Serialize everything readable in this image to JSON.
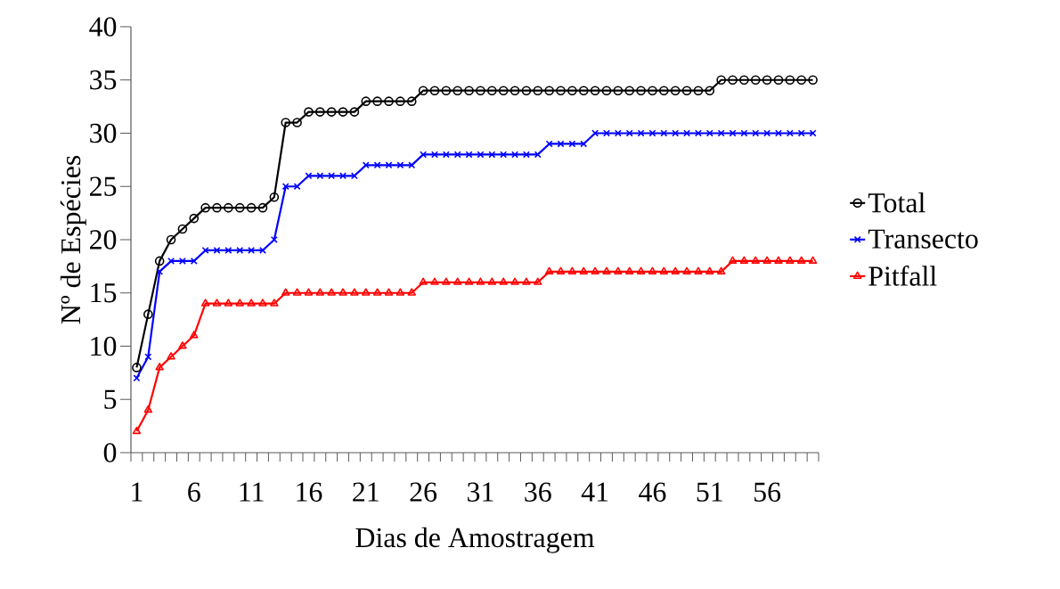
{
  "chart_data": {
    "type": "line",
    "xlabel": "Dias de Amostragem",
    "ylabel": "Nº de Espécies",
    "categories": [
      "1",
      null,
      null,
      null,
      null,
      "6",
      null,
      null,
      null,
      null,
      "11",
      null,
      null,
      null,
      null,
      "16",
      null,
      null,
      null,
      null,
      "21",
      null,
      null,
      null,
      null,
      "26",
      null,
      null,
      null,
      null,
      "31",
      null,
      null,
      null,
      null,
      "36",
      null,
      null,
      null,
      null,
      "41",
      null,
      null,
      null,
      null,
      "46",
      null,
      null,
      null,
      null,
      "51",
      null,
      null,
      null,
      null,
      "56",
      null,
      null,
      null,
      null
    ],
    "series": [
      {
        "name": "Total",
        "color": "#000000",
        "marker": "circle",
        "values": [
          8,
          13,
          18,
          20,
          21,
          22,
          23,
          23,
          23,
          23,
          23,
          23,
          24,
          31,
          31,
          32,
          32,
          32,
          32,
          32,
          33,
          33,
          33,
          33,
          33,
          34,
          34,
          34,
          34,
          34,
          34,
          34,
          34,
          34,
          34,
          34,
          34,
          34,
          34,
          34,
          34,
          34,
          34,
          34,
          34,
          34,
          34,
          34,
          34,
          34,
          34,
          35,
          35,
          35,
          35,
          35,
          35,
          35,
          35,
          35
        ]
      },
      {
        "name": "Transecto",
        "color": "#0000ff",
        "marker": "cross",
        "values": [
          7,
          9,
          17,
          18,
          18,
          18,
          19,
          19,
          19,
          19,
          19,
          19,
          20,
          25,
          25,
          26,
          26,
          26,
          26,
          26,
          27,
          27,
          27,
          27,
          27,
          28,
          28,
          28,
          28,
          28,
          28,
          28,
          28,
          28,
          28,
          28,
          29,
          29,
          29,
          29,
          30,
          30,
          30,
          30,
          30,
          30,
          30,
          30,
          30,
          30,
          30,
          30,
          30,
          30,
          30,
          30,
          30,
          30,
          30,
          30
        ]
      },
      {
        "name": "Pitfall",
        "color": "#ff0000",
        "marker": "triangle",
        "values": [
          2,
          4,
          8,
          9,
          10,
          11,
          14,
          14,
          14,
          14,
          14,
          14,
          14,
          15,
          15,
          15,
          15,
          15,
          15,
          15,
          15,
          15,
          15,
          15,
          15,
          16,
          16,
          16,
          16,
          16,
          16,
          16,
          16,
          16,
          16,
          16,
          17,
          17,
          17,
          17,
          17,
          17,
          17,
          17,
          17,
          17,
          17,
          17,
          17,
          17,
          17,
          17,
          18,
          18,
          18,
          18,
          18,
          18,
          18,
          18
        ]
      }
    ],
    "ylim": [
      0,
      40
    ],
    "yticks": [
      0,
      5,
      10,
      15,
      20,
      25,
      30,
      35,
      40
    ],
    "grid": false,
    "legend": "right",
    "line_style": "solid"
  }
}
